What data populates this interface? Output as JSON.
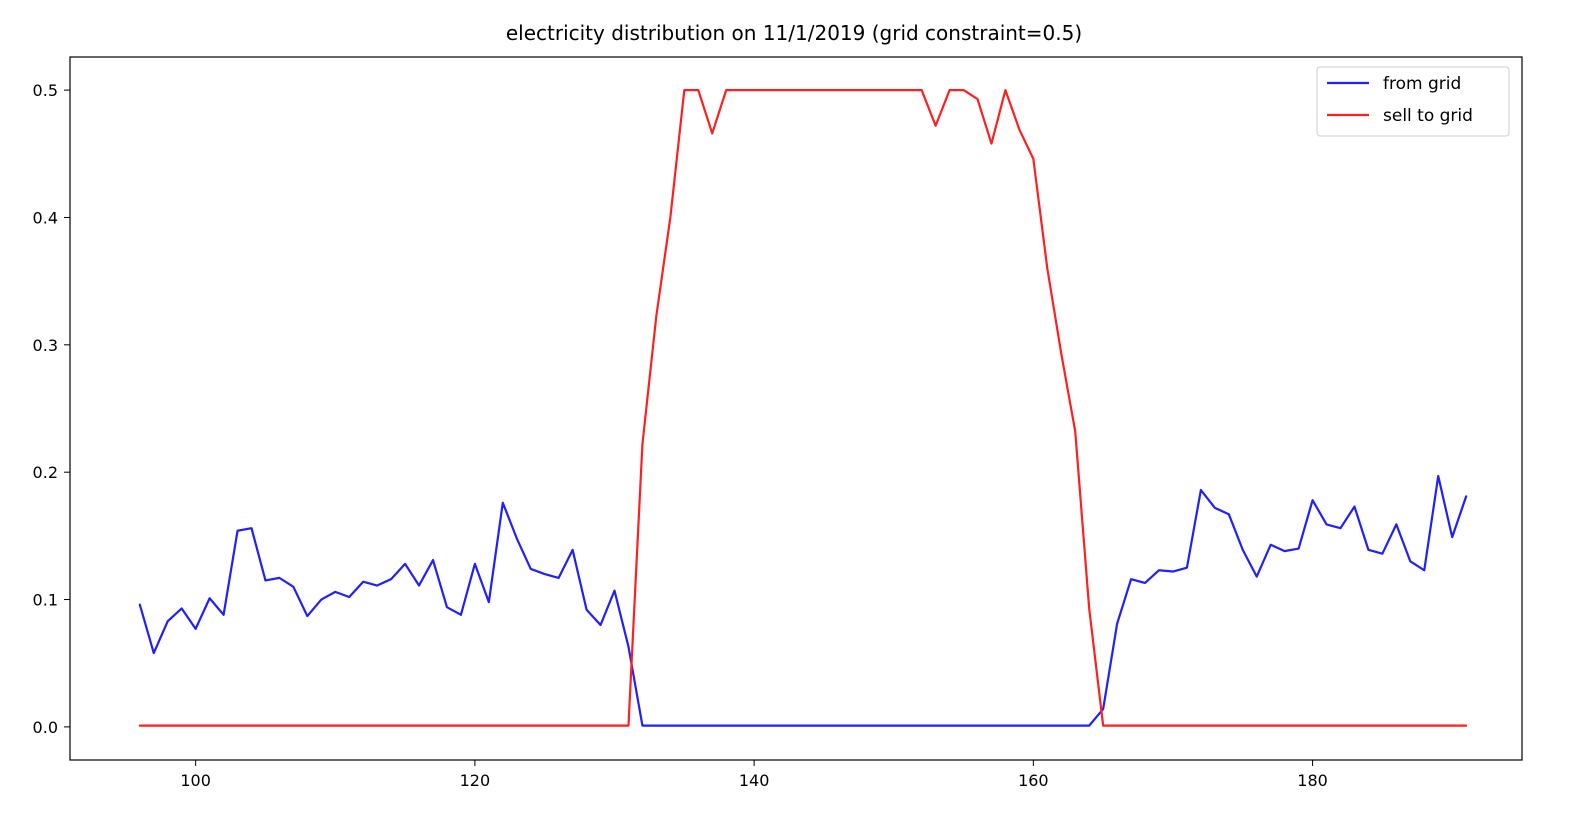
{
  "chart_data": {
    "type": "line",
    "title": "electricity distribution on 11/1/2019 (grid constraint=0.5)",
    "xlabel": "",
    "ylabel": "",
    "xlim": [
      91,
      195
    ],
    "ylim": [
      -0.026,
      0.526
    ],
    "xticks": [
      100,
      120,
      140,
      160,
      180
    ],
    "yticks": [
      0.0,
      0.1,
      0.2,
      0.3,
      0.4,
      0.5
    ],
    "ytick_labels": [
      "0.0",
      "0.1",
      "0.2",
      "0.3",
      "0.4",
      "0.5"
    ],
    "grid": false,
    "legend": "top-right",
    "series": [
      {
        "name": "from grid",
        "color": "#1f1fff",
        "x": [
          96,
          97,
          98,
          99,
          100,
          101,
          102,
          103,
          104,
          105,
          106,
          107,
          108,
          109,
          110,
          111,
          112,
          113,
          114,
          115,
          116,
          117,
          118,
          119,
          120,
          121,
          122,
          123,
          124,
          125,
          126,
          127,
          128,
          129,
          130,
          131,
          132,
          133,
          134,
          135,
          136,
          137,
          138,
          139,
          140,
          141,
          142,
          143,
          144,
          145,
          146,
          147,
          148,
          149,
          150,
          151,
          152,
          153,
          154,
          155,
          156,
          157,
          158,
          159,
          160,
          161,
          162,
          163,
          164,
          165,
          166,
          167,
          168,
          169,
          170,
          171,
          172,
          173,
          174,
          175,
          176,
          177,
          178,
          179,
          180,
          181,
          182,
          183,
          184,
          185,
          186,
          187,
          188,
          189,
          190,
          191
        ],
        "values": [
          0.096,
          0.058,
          0.083,
          0.093,
          0.077,
          0.101,
          0.088,
          0.154,
          0.156,
          0.115,
          0.117,
          0.11,
          0.087,
          0.1,
          0.106,
          0.102,
          0.114,
          0.111,
          0.116,
          0.128,
          0.111,
          0.131,
          0.094,
          0.088,
          0.128,
          0.098,
          0.176,
          0.148,
          0.124,
          0.12,
          0.117,
          0.139,
          0.092,
          0.08,
          0.107,
          0.063,
          0.001,
          0.001,
          0.001,
          0.001,
          0.001,
          0.001,
          0.001,
          0.001,
          0.001,
          0.001,
          0.001,
          0.001,
          0.001,
          0.001,
          0.001,
          0.001,
          0.001,
          0.001,
          0.001,
          0.001,
          0.001,
          0.001,
          0.001,
          0.001,
          0.001,
          0.001,
          0.001,
          0.001,
          0.001,
          0.001,
          0.001,
          0.001,
          0.001,
          0.014,
          0.081,
          0.116,
          0.113,
          0.123,
          0.122,
          0.125,
          0.186,
          0.172,
          0.167,
          0.139,
          0.118,
          0.143,
          0.138,
          0.14,
          0.178,
          0.159,
          0.156,
          0.173,
          0.139,
          0.136,
          0.159,
          0.13,
          0.123,
          0.197,
          0.149,
          0.181
        ]
      },
      {
        "name": "sell to grid",
        "color": "#ff1f1f",
        "x": [
          96,
          97,
          98,
          99,
          100,
          101,
          102,
          103,
          104,
          105,
          106,
          107,
          108,
          109,
          110,
          111,
          112,
          113,
          114,
          115,
          116,
          117,
          118,
          119,
          120,
          121,
          122,
          123,
          124,
          125,
          126,
          127,
          128,
          129,
          130,
          131,
          132,
          133,
          134,
          135,
          136,
          137,
          138,
          139,
          140,
          141,
          142,
          143,
          144,
          145,
          146,
          147,
          148,
          149,
          150,
          151,
          152,
          153,
          154,
          155,
          156,
          157,
          158,
          159,
          160,
          161,
          162,
          163,
          164,
          165,
          166,
          167,
          168,
          169,
          170,
          171,
          172,
          173,
          174,
          175,
          176,
          177,
          178,
          179,
          180,
          181,
          182,
          183,
          184,
          185,
          186,
          187,
          188,
          189,
          190,
          191
        ],
        "values": [
          0.001,
          0.001,
          0.001,
          0.001,
          0.001,
          0.001,
          0.001,
          0.001,
          0.001,
          0.001,
          0.001,
          0.001,
          0.001,
          0.001,
          0.001,
          0.001,
          0.001,
          0.001,
          0.001,
          0.001,
          0.001,
          0.001,
          0.001,
          0.001,
          0.001,
          0.001,
          0.001,
          0.001,
          0.001,
          0.001,
          0.001,
          0.001,
          0.001,
          0.001,
          0.001,
          0.001,
          0.222,
          0.323,
          0.4,
          0.5,
          0.5,
          0.466,
          0.5,
          0.5,
          0.5,
          0.5,
          0.5,
          0.5,
          0.5,
          0.5,
          0.5,
          0.5,
          0.5,
          0.5,
          0.5,
          0.5,
          0.5,
          0.472,
          0.5,
          0.5,
          0.493,
          0.458,
          0.5,
          0.469,
          0.446,
          0.36,
          0.293,
          0.232,
          0.093,
          0.001,
          0.001,
          0.001,
          0.001,
          0.001,
          0.001,
          0.001,
          0.001,
          0.001,
          0.001,
          0.001,
          0.001,
          0.001,
          0.001,
          0.001,
          0.001,
          0.001,
          0.001,
          0.001,
          0.001,
          0.001,
          0.001,
          0.001,
          0.001,
          0.001,
          0.001,
          0.001
        ]
      }
    ]
  }
}
